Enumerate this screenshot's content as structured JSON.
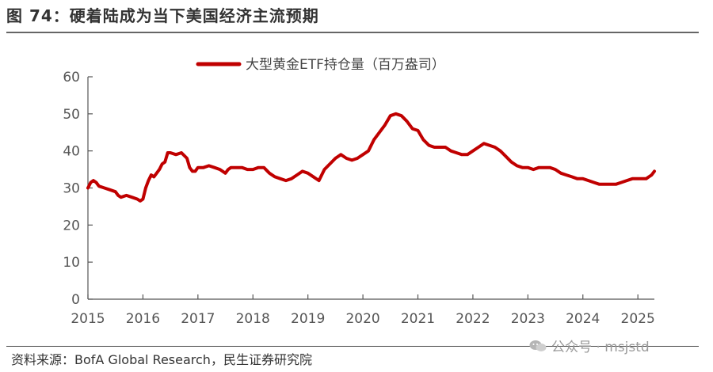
{
  "header": {
    "title": "图 74：硬着陆成为当下美国经济主流预期"
  },
  "footer": {
    "source": "资料来源：BofA Global Research，民生证券研究院"
  },
  "watermark": {
    "text": "公众号 · msjstd",
    "icon": "wechat-icon"
  },
  "colors": {
    "series": "#c00000",
    "axis": "#555555"
  },
  "chart_data": {
    "type": "line",
    "title": "",
    "legend": [
      "大型黄金ETF持仓量（百万盎司）"
    ],
    "legend_position": "top-center",
    "xlabel": "",
    "ylabel": "",
    "ylim": [
      0,
      60
    ],
    "yticks": [
      0,
      10,
      20,
      30,
      40,
      50,
      60
    ],
    "xlim": [
      2015,
      2025.3
    ],
    "xticks": [
      "2015",
      "2016",
      "2017",
      "2018",
      "2019",
      "2020",
      "2021",
      "2022",
      "2023",
      "2024",
      "2025"
    ],
    "grid": false,
    "series": [
      {
        "name": "大型黄金ETF持仓量（百万盎司）",
        "x": [
          2015.0,
          2015.05,
          2015.1,
          2015.15,
          2015.2,
          2015.3,
          2015.4,
          2015.5,
          2015.55,
          2015.6,
          2015.7,
          2015.8,
          2015.9,
          2015.95,
          2016.0,
          2016.05,
          2016.1,
          2016.15,
          2016.2,
          2016.3,
          2016.35,
          2016.4,
          2016.45,
          2016.5,
          2016.6,
          2016.7,
          2016.8,
          2016.85,
          2016.9,
          2016.95,
          2017.0,
          2017.1,
          2017.2,
          2017.3,
          2017.4,
          2017.5,
          2017.55,
          2017.6,
          2017.7,
          2017.8,
          2017.9,
          2018.0,
          2018.1,
          2018.2,
          2018.3,
          2018.4,
          2018.5,
          2018.6,
          2018.7,
          2018.8,
          2018.9,
          2019.0,
          2019.1,
          2019.2,
          2019.3,
          2019.4,
          2019.5,
          2019.6,
          2019.7,
          2019.8,
          2019.9,
          2020.0,
          2020.1,
          2020.2,
          2020.3,
          2020.4,
          2020.5,
          2020.6,
          2020.7,
          2020.8,
          2020.9,
          2021.0,
          2021.1,
          2021.2,
          2021.3,
          2021.4,
          2021.5,
          2021.6,
          2021.7,
          2021.8,
          2021.9,
          2022.0,
          2022.1,
          2022.2,
          2022.3,
          2022.4,
          2022.5,
          2022.6,
          2022.7,
          2022.8,
          2022.9,
          2023.0,
          2023.1,
          2023.2,
          2023.3,
          2023.4,
          2023.5,
          2023.6,
          2023.7,
          2023.8,
          2023.9,
          2024.0,
          2024.1,
          2024.2,
          2024.3,
          2024.4,
          2024.5,
          2024.6,
          2024.7,
          2024.8,
          2024.9,
          2025.0,
          2025.1,
          2025.15,
          2025.2,
          2025.25,
          2025.3
        ],
        "values": [
          30,
          31.5,
          32,
          31.5,
          30.5,
          30,
          29.5,
          29,
          28,
          27.5,
          28,
          27.5,
          27,
          26.5,
          27,
          30,
          32,
          33.5,
          33,
          35,
          36.5,
          37,
          39.5,
          39.5,
          39,
          39.5,
          38,
          35.5,
          34.5,
          34.5,
          35.5,
          35.5,
          36,
          35.5,
          35,
          34,
          35,
          35.5,
          35.5,
          35.5,
          35,
          35,
          35.5,
          35.5,
          34,
          33,
          32.5,
          32,
          32.5,
          33.5,
          34.5,
          34,
          33,
          32,
          35,
          36.5,
          38,
          39,
          38,
          37.5,
          38,
          39,
          40,
          43,
          45,
          47,
          49.5,
          50,
          49.5,
          48,
          46,
          45.5,
          43,
          41.5,
          41,
          41,
          41,
          40,
          39.5,
          39,
          39,
          40,
          41,
          42,
          41.5,
          41,
          40,
          38.5,
          37,
          36,
          35.5,
          35.5,
          35,
          35.5,
          35.5,
          35.5,
          35,
          34,
          33.5,
          33,
          32.5,
          32.5,
          32,
          31.5,
          31,
          31,
          31,
          31,
          31.5,
          32,
          32.5,
          32.5,
          32.5,
          32.5,
          33,
          33.5,
          34.5
        ]
      }
    ]
  }
}
